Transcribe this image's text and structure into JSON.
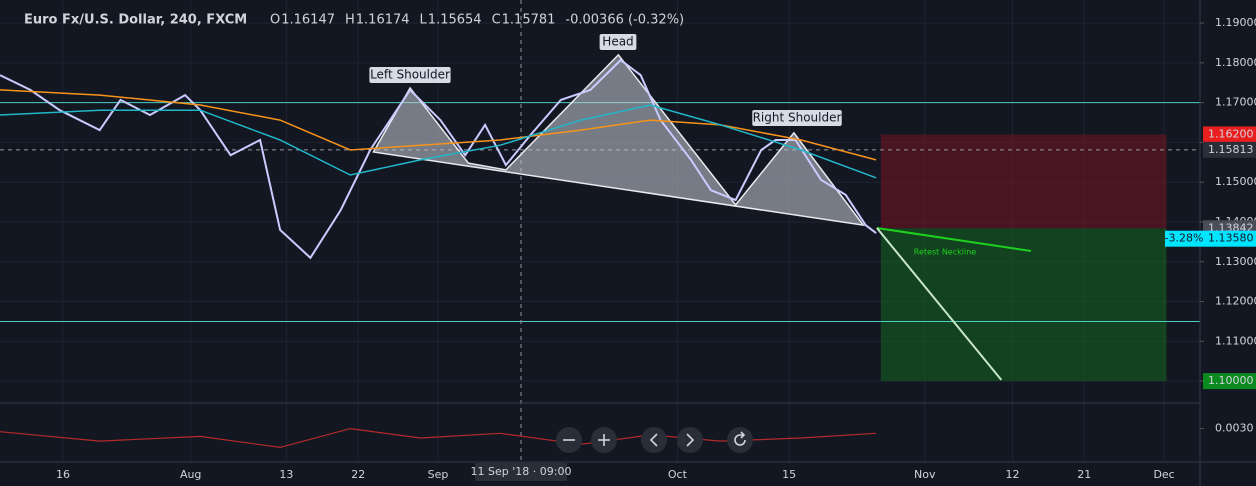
{
  "chart_data": {
    "type": "line",
    "title": "Euro Fx/U.S. Dollar, 240, FXCM",
    "ohlc": [
      {
        "label": "O",
        "value": "1.16147"
      },
      {
        "label": "H",
        "value": "1.16174"
      },
      {
        "label": "L",
        "value": "1.15654"
      },
      {
        "label": "C",
        "value": "1.15781"
      }
    ],
    "change": "-0.00366 (-0.32%)",
    "xlim": [
      7.1,
      157.5
    ],
    "xticks": [
      {
        "value": 15,
        "label": "16"
      },
      {
        "value": 31,
        "label": "Aug"
      },
      {
        "value": 43,
        "label": "13"
      },
      {
        "value": 52,
        "label": "22"
      },
      {
        "value": 62,
        "label": "Sep"
      },
      {
        "value": 92,
        "label": "Oct"
      },
      {
        "value": 106,
        "label": "15"
      },
      {
        "value": 123,
        "label": "Nov"
      },
      {
        "value": 134,
        "label": "12"
      },
      {
        "value": 143,
        "label": "21"
      },
      {
        "value": 153,
        "label": "Dec"
      }
    ],
    "ylim": [
      1.0945,
      1.1958
    ],
    "yticks": [
      {
        "value": 1.19,
        "label": "1.19000"
      },
      {
        "value": 1.18,
        "label": "1.18000"
      },
      {
        "value": 1.17,
        "label": "1.17000"
      },
      {
        "value": 1.16,
        "label": "1.16000"
      },
      {
        "value": 1.15,
        "label": "1.15000"
      },
      {
        "value": 1.14,
        "label": "1.14000"
      },
      {
        "value": 1.13,
        "label": "1.13000"
      },
      {
        "value": 1.12,
        "label": "1.12000"
      },
      {
        "value": 1.11,
        "label": "1.11000"
      },
      {
        "value": 1.1,
        "label": "1.10000"
      }
    ],
    "grid": true,
    "series": [
      {
        "color": "#c9cbff",
        "x": [
          7.1,
          10.9,
          14.6,
          19.6,
          22.2,
          25.9,
          30.3,
          32.2,
          36.0,
          39.7,
          42.2,
          46.0,
          49.8,
          53.5,
          58.5,
          62.3,
          65.4,
          67.9,
          70.5,
          73.6,
          77.4,
          81.1,
          84.9,
          87.4,
          89.9,
          93.7,
          96.2,
          99.3,
          102.5,
          104.3,
          106.8,
          110.0,
          113.1,
          115.6,
          116.9
        ],
        "values": [
          1.1769,
          1.1732,
          1.1681,
          1.1631,
          1.1707,
          1.1669,
          1.1719,
          1.1681,
          1.1568,
          1.1606,
          1.138,
          1.131,
          1.143,
          1.1581,
          1.1732,
          1.1656,
          1.1568,
          1.1644,
          1.1543,
          1.1619,
          1.1707,
          1.1732,
          1.1807,
          1.1769,
          1.1656,
          1.1556,
          1.148,
          1.1455,
          1.1581,
          1.1606,
          1.1606,
          1.1506,
          1.1468,
          1.1392,
          1.1372
        ]
      },
      {
        "color": "#f7931a",
        "x": [
          7.1,
          19.6,
          32.2,
          42.2,
          51.0,
          59.8,
          69.8,
          79.9,
          88.6,
          97.4,
          107.5,
          116.9
        ],
        "values": [
          1.1732,
          1.1719,
          1.1694,
          1.1656,
          1.1581,
          1.1593,
          1.1606,
          1.1631,
          1.1656,
          1.1644,
          1.1606,
          1.1556
        ]
      },
      {
        "color": "#21b6c8",
        "x": [
          7.1,
          19.6,
          32.2,
          42.2,
          51.0,
          59.8,
          69.8,
          79.9,
          88.6,
          97.4,
          107.5,
          116.9
        ],
        "values": [
          1.1669,
          1.1681,
          1.1681,
          1.1606,
          1.1518,
          1.1556,
          1.1593,
          1.1656,
          1.1694,
          1.1644,
          1.1581,
          1.1511
        ]
      }
    ],
    "pattern": {
      "x": [
        53.9,
        58.5,
        65.8,
        70.5,
        84.6,
        99.3,
        106.6,
        115.3
      ],
      "values": [
        1.1576,
        1.1737,
        1.1548,
        1.1531,
        1.182,
        1.1443,
        1.1624,
        1.1392
      ]
    },
    "retest_line": {
      "x": [
        117.0,
        136.3
      ],
      "values": [
        1.1385,
        1.1327
      ],
      "color": "#1ed11e"
    },
    "projection": {
      "x": [
        117.0,
        132.6
      ],
      "values": [
        1.1385,
        1.1003
      ],
      "color": "#c8e6c9"
    },
    "hlines": [
      1.17,
      1.115
    ],
    "annotations": [
      "Left Shoulder",
      "Head",
      "Right Shoulder",
      "Retest Neckline"
    ],
    "position": {
      "x": [
        117.5,
        153.3
      ],
      "stop": 1.162,
      "entry": 1.13842,
      "target": 1.1
    },
    "price_labels": [
      {
        "value": 1.162,
        "label": "1.16200",
        "color": "#e91e1e"
      },
      {
        "value": 1.15813,
        "label": "1.15813",
        "color": "#2a2e39"
      },
      {
        "value": 1.13842,
        "label": "1.13842",
        "color": "#4a4e59"
      },
      {
        "value": 1.1358,
        "label": "1.13580",
        "color": "#00e5ff",
        "note": "-3.28%"
      },
      {
        "value": 1.1,
        "label": "1.10000",
        "color": "#0a8a1e"
      }
    ],
    "crosshair": {
      "x": 72.4,
      "y": 1.15813,
      "label": "11 Sep '18 · 09:00"
    },
    "indicator": {
      "color": "#b52a2a",
      "ylim": [
        0.001,
        0.0045
      ],
      "yticks": [
        {
          "value": 0.003,
          "label": "0.0030"
        }
      ],
      "x": [
        7.1,
        19.6,
        32.2,
        42.2,
        51.0,
        59.8,
        69.8,
        79.9,
        88.6,
        97.4,
        107.5,
        116.9
      ],
      "values": [
        0.0028,
        0.0022,
        0.0025,
        0.0018,
        0.003,
        0.0024,
        0.0027,
        0.002,
        0.0026,
        0.0022,
        0.0024,
        0.0027
      ]
    }
  }
}
